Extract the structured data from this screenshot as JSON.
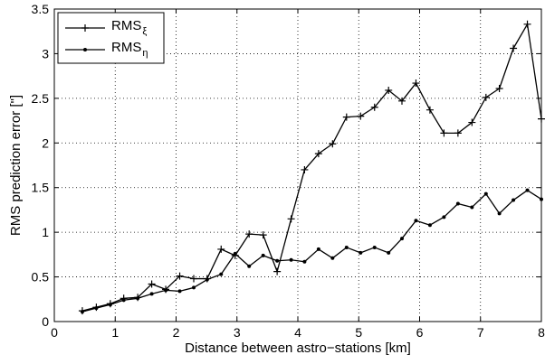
{
  "chart_data": {
    "type": "line",
    "title": "",
    "xlabel": "Distance between astro−stations [km]",
    "ylabel": "RMS prediction error [\"]",
    "xlim": [
      0,
      8
    ],
    "ylim": [
      0,
      3.5
    ],
    "xticks": [
      0,
      1,
      2,
      3,
      4,
      5,
      6,
      7,
      8
    ],
    "yticks": [
      0,
      0.5,
      1,
      1.5,
      2,
      2.5,
      3,
      3.5
    ],
    "xtick_labels": [
      "0",
      "1",
      "2",
      "3",
      "4",
      "5",
      "6",
      "7",
      "8"
    ],
    "ytick_labels": [
      "0",
      "0.5",
      "1",
      "1.5",
      "2",
      "2.5",
      "3",
      "3.5"
    ],
    "grid": true,
    "legend_position": "top-left",
    "series": [
      {
        "name": "RMS",
        "subscript": "ξ",
        "marker": "plus",
        "color": "#000000",
        "x": [
          0.46,
          0.69,
          0.92,
          1.14,
          1.37,
          1.6,
          1.83,
          2.06,
          2.29,
          2.51,
          2.74,
          2.97,
          3.2,
          3.43,
          3.66,
          3.89,
          4.11,
          4.34,
          4.57,
          4.8,
          5.03,
          5.26,
          5.49,
          5.71,
          5.94,
          6.17,
          6.4,
          6.63,
          6.86,
          7.09,
          7.31,
          7.54,
          7.77,
          8.0
        ],
        "values": [
          0.12,
          0.16,
          0.2,
          0.26,
          0.27,
          0.42,
          0.36,
          0.51,
          0.48,
          0.48,
          0.81,
          0.74,
          0.98,
          0.97,
          0.56,
          1.15,
          1.7,
          1.88,
          1.99,
          2.29,
          2.3,
          2.4,
          2.59,
          2.47,
          2.67,
          2.37,
          2.11,
          2.11,
          2.23,
          2.51,
          2.61,
          3.06,
          3.33,
          2.27
        ]
      },
      {
        "name": "RMS",
        "subscript": "η",
        "marker": "dot",
        "color": "#000000",
        "x": [
          0.46,
          0.69,
          0.92,
          1.14,
          1.37,
          1.6,
          1.83,
          2.06,
          2.29,
          2.51,
          2.74,
          2.97,
          3.2,
          3.43,
          3.66,
          3.89,
          4.11,
          4.34,
          4.57,
          4.8,
          5.03,
          5.26,
          5.49,
          5.71,
          5.94,
          6.17,
          6.4,
          6.63,
          6.86,
          7.09,
          7.31,
          7.54,
          7.77,
          8.0
        ],
        "values": [
          0.11,
          0.15,
          0.19,
          0.24,
          0.26,
          0.31,
          0.35,
          0.34,
          0.38,
          0.47,
          0.53,
          0.76,
          0.62,
          0.74,
          0.68,
          0.69,
          0.67,
          0.81,
          0.71,
          0.83,
          0.77,
          0.83,
          0.77,
          0.93,
          1.13,
          1.08,
          1.17,
          1.32,
          1.28,
          1.43,
          1.21,
          1.36,
          1.47,
          1.37
        ]
      }
    ]
  }
}
